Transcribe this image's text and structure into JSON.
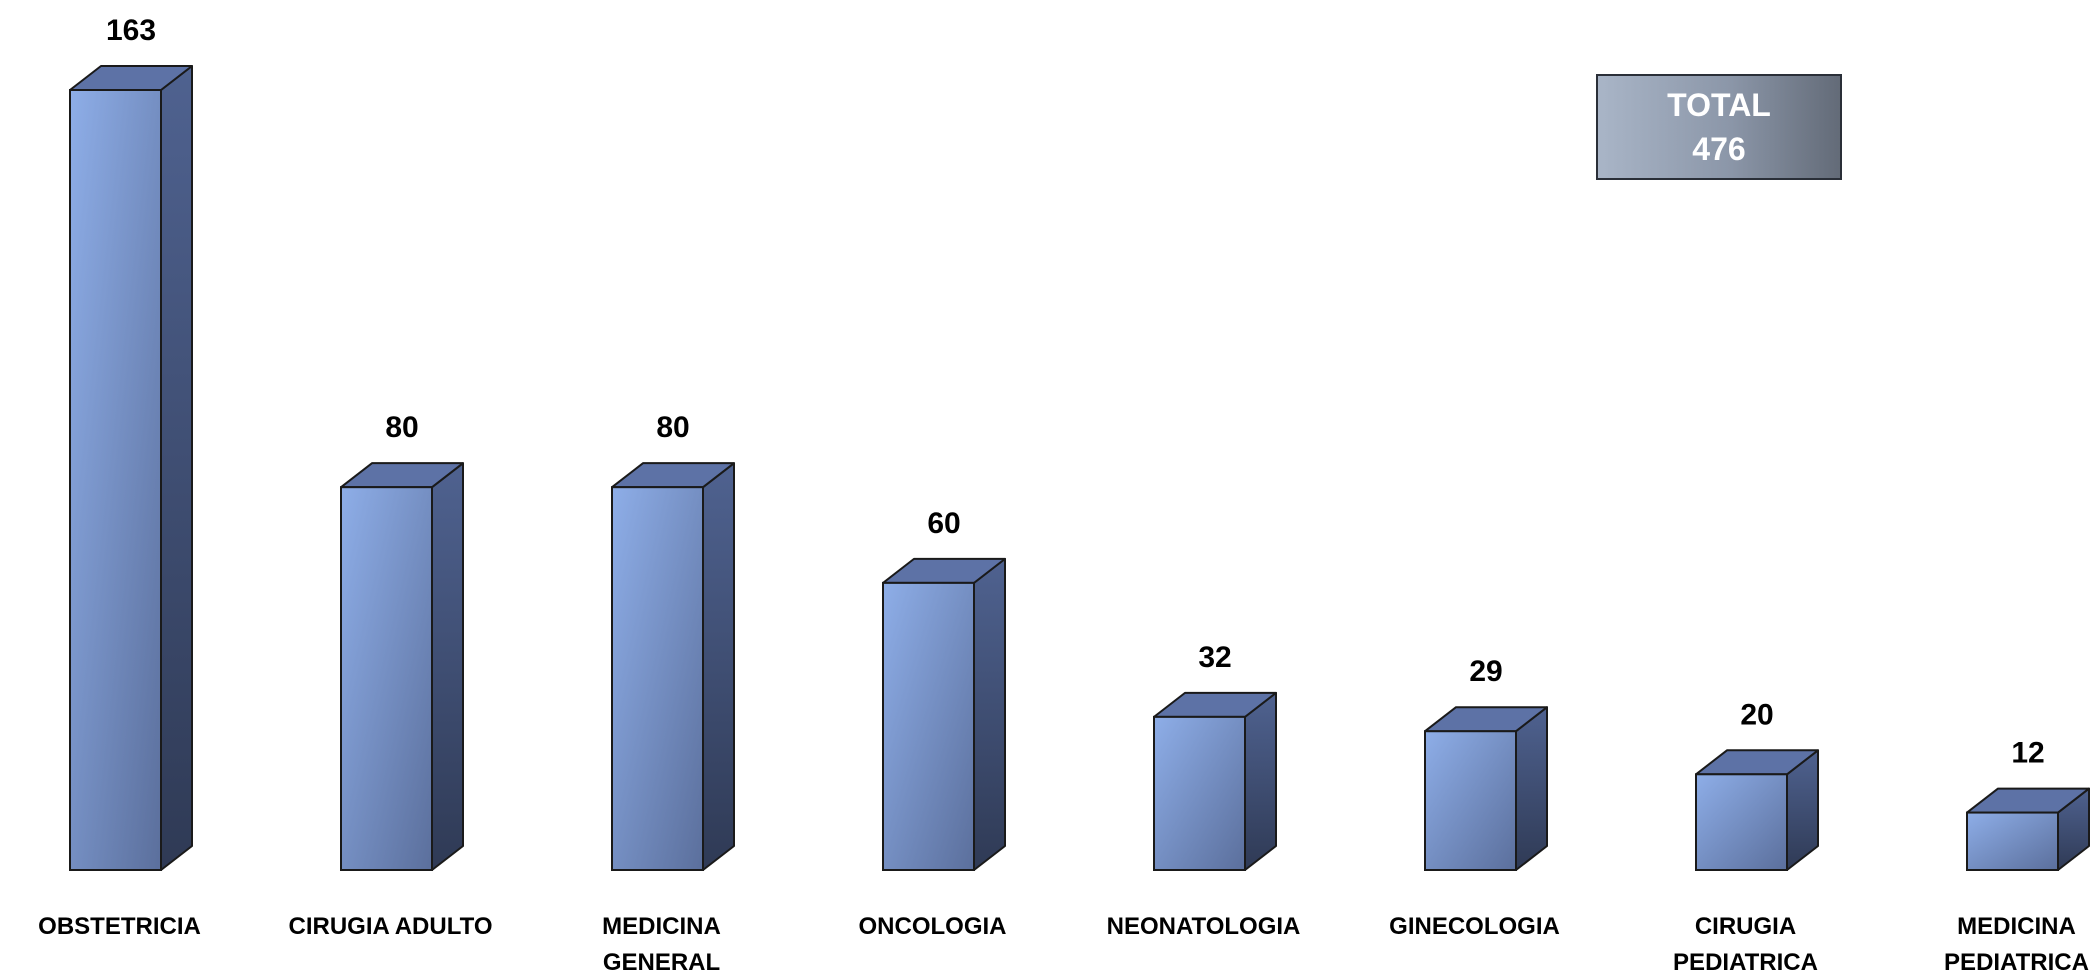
{
  "chart_data": {
    "type": "bar",
    "categories": [
      "OBSTETRICIA",
      "CIRUGIA ADULTO",
      "MEDICINA GENERAL",
      "ONCOLOGIA",
      "NEONATOLOGIA",
      "GINECOLOGIA",
      "CIRUGIA PEDIATRICA",
      "MEDICINA PEDIATRICA"
    ],
    "category_lines": [
      [
        "OBSTETRICIA"
      ],
      [
        "CIRUGIA ADULTO"
      ],
      [
        "MEDICINA",
        "GENERAL"
      ],
      [
        "ONCOLOGIA"
      ],
      [
        "NEONATOLOGIA"
      ],
      [
        "GINECOLOGIA"
      ],
      [
        "CIRUGIA",
        "PEDIATRICA"
      ],
      [
        "MEDICINA",
        "PEDIATRICA"
      ]
    ],
    "values": [
      163,
      80,
      80,
      60,
      32,
      29,
      20,
      12
    ],
    "title": "",
    "xlabel": "",
    "ylabel": "",
    "ylim": [
      0,
      163
    ],
    "grid": false,
    "legend": "none",
    "style": "3d-column",
    "data_labels": true,
    "colors": {
      "front_light": "#8eaee8",
      "front_dark": "#5b6f9c",
      "side_light": "#4f6290",
      "side_dark": "#2f3a55",
      "top": "#5d72a6",
      "outline": "#1a1a1a"
    }
  },
  "total_box": {
    "label": "TOTAL",
    "value": "476"
  }
}
